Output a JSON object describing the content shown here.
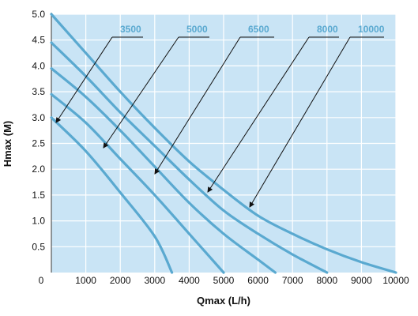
{
  "chart_data": {
    "type": "line",
    "xlabel": "Qmax (L/h)",
    "ylabel": "Hmax (M)",
    "xlim": [
      0,
      10000
    ],
    "ylim": [
      0,
      5.0
    ],
    "x_ticks": [
      "0",
      "1000",
      "2000",
      "3000",
      "4000",
      "5000",
      "6000",
      "7000",
      "8000",
      "9000",
      "10000"
    ],
    "y_ticks": [
      "0.5",
      "1.0",
      "1.5",
      "2.0",
      "2.5",
      "3.0",
      "3.5",
      "4.0",
      "4.5",
      "5.0"
    ],
    "y_zero_label": "0",
    "grid": true,
    "colors": {
      "background": "#c9e4f5",
      "grid": "#ffffff",
      "line": "#5aa9d0",
      "arrow": "#111111",
      "label": "#5aa9d0"
    },
    "series": [
      {
        "name": "3500",
        "points": [
          [
            0,
            3.0
          ],
          [
            1000,
            2.35
          ],
          [
            2000,
            1.55
          ],
          [
            3000,
            0.7
          ],
          [
            3500,
            0.0
          ]
        ]
      },
      {
        "name": "5000",
        "points": [
          [
            0,
            3.45
          ],
          [
            1000,
            2.9
          ],
          [
            2000,
            2.2
          ],
          [
            3000,
            1.5
          ],
          [
            4000,
            0.75
          ],
          [
            5000,
            0.0
          ]
        ]
      },
      {
        "name": "6500",
        "points": [
          [
            0,
            3.95
          ],
          [
            1000,
            3.4
          ],
          [
            2000,
            2.75
          ],
          [
            3000,
            2.05
          ],
          [
            4000,
            1.35
          ],
          [
            5000,
            0.75
          ],
          [
            6000,
            0.25
          ],
          [
            6500,
            0.0
          ]
        ]
      },
      {
        "name": "8000",
        "points": [
          [
            0,
            4.45
          ],
          [
            1000,
            3.8
          ],
          [
            2000,
            3.1
          ],
          [
            3000,
            2.45
          ],
          [
            4000,
            1.8
          ],
          [
            5000,
            1.2
          ],
          [
            6000,
            0.75
          ],
          [
            7000,
            0.35
          ],
          [
            8000,
            0.0
          ]
        ]
      },
      {
        "name": "10000",
        "points": [
          [
            0,
            5.0
          ],
          [
            1000,
            4.25
          ],
          [
            2000,
            3.5
          ],
          [
            3000,
            2.8
          ],
          [
            4000,
            2.15
          ],
          [
            5000,
            1.6
          ],
          [
            6000,
            1.1
          ],
          [
            7000,
            0.75
          ],
          [
            8000,
            0.45
          ],
          [
            9000,
            0.2
          ],
          [
            10000,
            0.0
          ]
        ]
      }
    ]
  }
}
